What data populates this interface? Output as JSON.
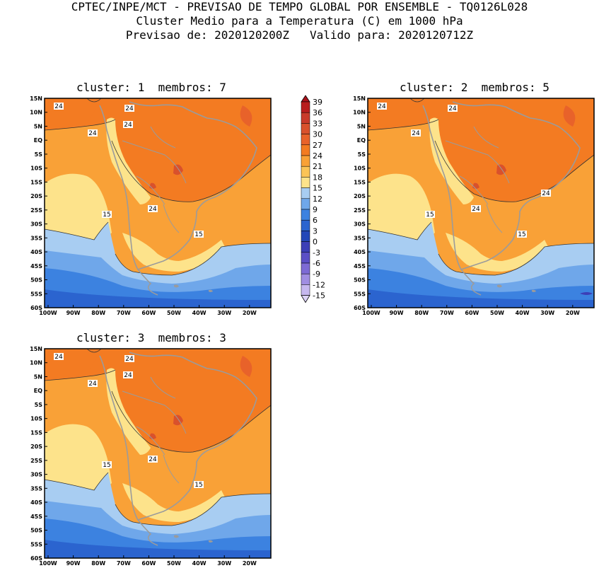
{
  "header": {
    "line1": "CPTEC/INPE/MCT - PREVISAO DE TEMPO GLOBAL POR ENSEMBLE - TQ0126L028",
    "line2": "Cluster Medio para a Temperatura (C) em 1000 hPa",
    "line3": "Previsao de: 2020120200Z   Valido para: 2020120712Z"
  },
  "panels": [
    {
      "title": "cluster: 1  membros: 7"
    },
    {
      "title": "cluster: 2  membros: 5"
    },
    {
      "title": "cluster: 3  membros: 3"
    }
  ],
  "lat_labels": [
    "15N",
    "10N",
    "5N",
    "EQ",
    "5S",
    "10S",
    "15S",
    "20S",
    "25S",
    "30S",
    "35S",
    "40S",
    "45S",
    "50S",
    "55S",
    "60S"
  ],
  "lon_labels": [
    "100W",
    "90W",
    "80W",
    "70W",
    "60W",
    "50W",
    "40W",
    "30W",
    "20W"
  ],
  "colorbar": {
    "levels": [
      "39",
      "36",
      "33",
      "30",
      "27",
      "24",
      "21",
      "18",
      "15",
      "12",
      "9",
      "6",
      "3",
      "0",
      "-3",
      "-6",
      "-9",
      "-12",
      "-15"
    ],
    "colors": [
      "#b81d1d",
      "#c93a2a",
      "#d9512c",
      "#e8622a",
      "#f37b22",
      "#f9a137",
      "#fbc457",
      "#fde38b",
      "#a8cdf2",
      "#6fa7ea",
      "#3c82e0",
      "#2b64cf",
      "#2347b8",
      "#3c3fb7",
      "#5b4fc6",
      "#7d6bd5",
      "#a08ee2",
      "#c6b8ef"
    ],
    "top_color": "#a8121b",
    "bottom_color": "#dcd3f6"
  },
  "contour_labels": {
    "c1": [
      "24",
      "24",
      "24",
      "24",
      "24",
      "15",
      "15"
    ],
    "c2": [
      "24",
      "24",
      "24",
      "24",
      "24",
      "15",
      "15"
    ],
    "c3": [
      "24",
      "24",
      "24",
      "24",
      "24",
      "15",
      "15"
    ]
  }
}
